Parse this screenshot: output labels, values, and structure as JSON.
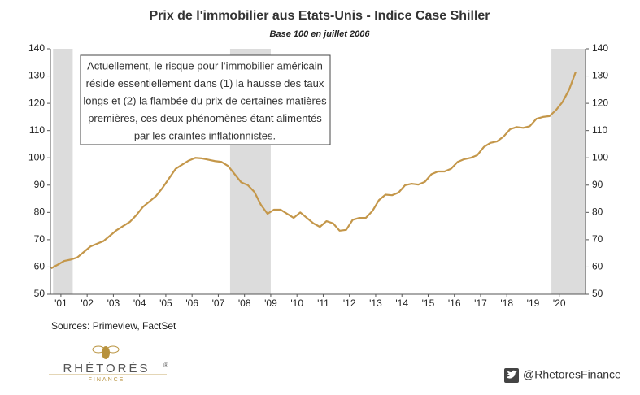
{
  "chart_data": {
    "type": "line",
    "title": "Prix de l'immobilier aus Etats-Unis - Indice Case Shiller",
    "subtitle": "Base 100 en juillet 2006",
    "annotation": [
      "Actuellement, le risque pour l’immobilier américain",
      "réside essentiellement dans (1) la hausse des taux",
      "longs et (2) la flambée du prix de certaines matières",
      "premières, ces deux phénomènes étant alimentés",
      "par les craintes inflationnistes."
    ],
    "x": [
      2001.125,
      2001.375,
      2001.625,
      2001.875,
      2002.125,
      2002.375,
      2002.625,
      2002.875,
      2003.125,
      2003.375,
      2003.625,
      2003.875,
      2004.125,
      2004.375,
      2004.625,
      2004.875,
      2005.125,
      2005.375,
      2005.625,
      2005.875,
      2006.125,
      2006.375,
      2006.625,
      2006.875,
      2007.125,
      2007.375,
      2007.625,
      2007.875,
      2008.125,
      2008.375,
      2008.625,
      2008.875,
      2009.125,
      2009.375,
      2009.625,
      2009.875,
      2010.125,
      2010.375,
      2010.625,
      2010.875,
      2011.125,
      2011.375,
      2011.625,
      2011.875,
      2012.125,
      2012.375,
      2012.625,
      2012.875,
      2013.125,
      2013.375,
      2013.625,
      2013.875,
      2014.125,
      2014.375,
      2014.625,
      2014.875,
      2015.125,
      2015.375,
      2015.625,
      2015.875,
      2016.125,
      2016.375,
      2016.625,
      2016.875,
      2017.125,
      2017.375,
      2017.625,
      2017.875,
      2018.125,
      2018.375,
      2018.625,
      2018.875,
      2019.125,
      2019.375,
      2019.625,
      2019.875,
      2020.125,
      2020.375,
      2020.625,
      2020.875,
      2021.125
    ],
    "series": [
      {
        "name": "Indice Case Shiller",
        "color": "#c4974a",
        "values": [
          59.5,
          60.8,
          62.2,
          62.7,
          63.5,
          65.5,
          67.5,
          68.5,
          69.5,
          71.5,
          73.5,
          75,
          76.5,
          79,
          82,
          84,
          86,
          89,
          92.5,
          96,
          97.5,
          99,
          100,
          99.8,
          99.3,
          98.8,
          98.5,
          97,
          94,
          91,
          90,
          87.5,
          82.8,
          79.5,
          81,
          81,
          79.5,
          78,
          80,
          78,
          76,
          74.7,
          76.8,
          76,
          73.3,
          73.6,
          77.3,
          78,
          78,
          80.5,
          84.5,
          86.5,
          86.3,
          87.3,
          90,
          90.5,
          90.2,
          91.2,
          94,
          95,
          95,
          96,
          98.5,
          99.5,
          100,
          101,
          104,
          105.5,
          106,
          107.8,
          110.5,
          111.3,
          111,
          111.6,
          114.3,
          115,
          115.3,
          117.5,
          120.5,
          125,
          131.5
        ]
      }
    ],
    "recessions": [
      [
        2001.2,
        2001.95
      ],
      [
        2007.95,
        2009.5
      ],
      [
        2020.2,
        2021.5
      ]
    ],
    "recession_color": "#dcdcdc",
    "xlim": [
      2001.1,
      2021.5
    ],
    "xticks": [
      {
        "value": 2001.5,
        "label": "'01"
      },
      {
        "value": 2002.5,
        "label": "'02"
      },
      {
        "value": 2003.5,
        "label": "'03"
      },
      {
        "value": 2004.5,
        "label": "'04"
      },
      {
        "value": 2005.5,
        "label": "'05"
      },
      {
        "value": 2006.5,
        "label": "'06"
      },
      {
        "value": 2007.5,
        "label": "'07"
      },
      {
        "value": 2008.5,
        "label": "'08"
      },
      {
        "value": 2009.5,
        "label": "'09"
      },
      {
        "value": 2010.5,
        "label": "'10"
      },
      {
        "value": 2011.5,
        "label": "'11"
      },
      {
        "value": 2012.5,
        "label": "'12"
      },
      {
        "value": 2013.5,
        "label": "'13"
      },
      {
        "value": 2014.5,
        "label": "'14"
      },
      {
        "value": 2015.5,
        "label": "'15"
      },
      {
        "value": 2016.5,
        "label": "'16"
      },
      {
        "value": 2017.5,
        "label": "'17"
      },
      {
        "value": 2018.5,
        "label": "'18"
      },
      {
        "value": 2019.5,
        "label": "'19"
      },
      {
        "value": 2020.5,
        "label": "'20"
      }
    ],
    "ylim": [
      50,
      140
    ],
    "yticks": [
      50,
      60,
      70,
      80,
      90,
      100,
      110,
      120,
      130,
      140
    ],
    "y2lim": [
      50,
      140
    ],
    "y2ticks": [
      50,
      60,
      70,
      80,
      90,
      100,
      110,
      120,
      130,
      140
    ],
    "grid": false
  },
  "footer": {
    "source": "Sources: Primeview, FactSet",
    "brand": "RHÉTORÈS",
    "brand_mark": "®",
    "brand_sub": "FINANCE",
    "handle": "@RhetoresFinance"
  }
}
